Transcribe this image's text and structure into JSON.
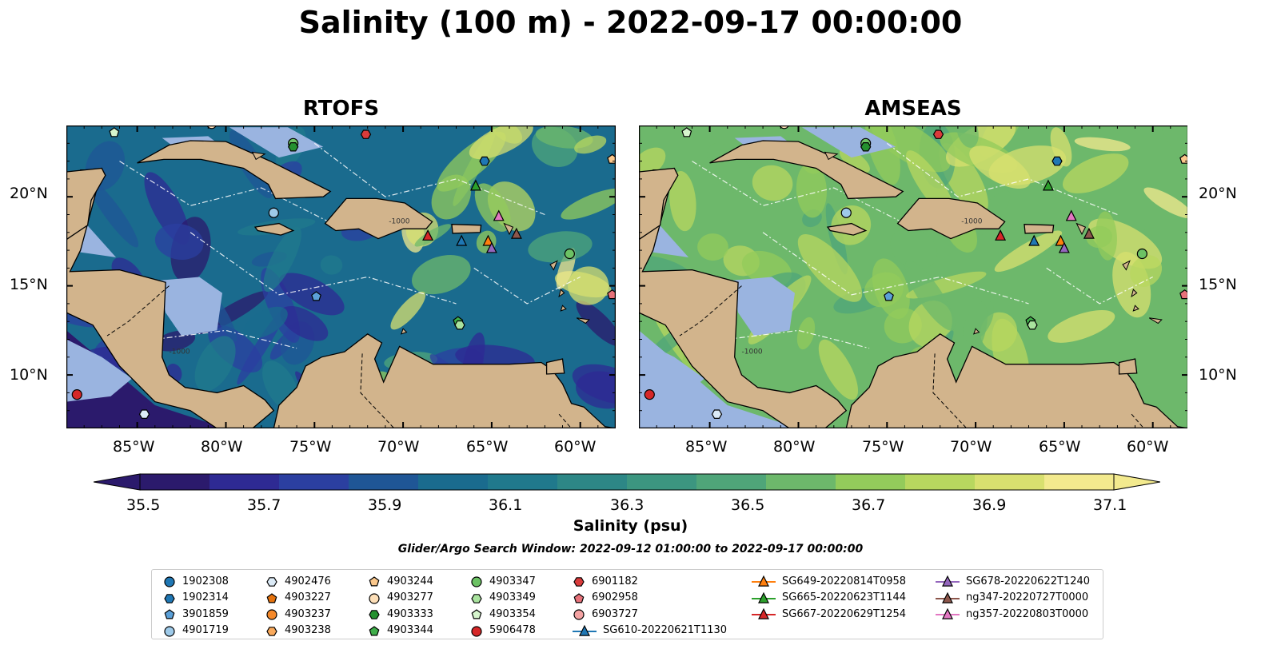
{
  "title": "Salinity (100 m) - 2022-09-17 00:00:00",
  "panels": [
    {
      "title": "RTOFS",
      "palette_bias": "low"
    },
    {
      "title": "AMSEAS",
      "palette_bias": "high"
    }
  ],
  "map": {
    "lon_range": [
      -89,
      -58
    ],
    "lat_range": [
      7,
      24
    ],
    "lon_ticks": [
      "85°W",
      "80°W",
      "75°W",
      "70°W",
      "65°W",
      "60°W"
    ],
    "lat_ticks": [
      "20°N",
      "15°N",
      "10°N"
    ],
    "land_color": "#d2b48c",
    "shelf_color": "#9ab4e0",
    "contour_labels": [
      "-1000",
      "-100"
    ]
  },
  "colorbar": {
    "ticks": [
      "35.5",
      "35.7",
      "35.9",
      "36.1",
      "36.3",
      "36.5",
      "36.7",
      "36.9",
      "37.1"
    ],
    "label": "Salinity (psu)",
    "colors": [
      "#2b1a6c",
      "#2e2a93",
      "#2b3fa0",
      "#1f5696",
      "#1a6b8e",
      "#20798c",
      "#2d8786",
      "#3c9680",
      "#4fa579",
      "#6db86b",
      "#93cb5b",
      "#b8d75f",
      "#d8e06f",
      "#f3ea8e"
    ],
    "min": 35.4,
    "max": 37.2
  },
  "search_window": "Glider/Argo Search Window: 2022-09-12 01:00:00 to 2022-09-17 00:00:00",
  "legend": {
    "entries": [
      {
        "label": "1902308",
        "marker": "circle",
        "color": "#1f77b4"
      },
      {
        "label": "1902314",
        "marker": "hexagon",
        "color": "#1f77b4"
      },
      {
        "label": "3901859",
        "marker": "pentagon",
        "color": "#5ba0d8"
      },
      {
        "label": "4901719",
        "marker": "circle",
        "color": "#9ecae9"
      },
      {
        "label": "4902476",
        "marker": "hexagon",
        "color": "#dcebf7"
      },
      {
        "label": "4903227",
        "marker": "pentagon",
        "color": "#e6730e"
      },
      {
        "label": "4903237",
        "marker": "circle",
        "color": "#f5892a"
      },
      {
        "label": "4903238",
        "marker": "hexagon",
        "color": "#f9a95b"
      },
      {
        "label": "4903244",
        "marker": "pentagon",
        "color": "#fbc88c"
      },
      {
        "label": "4903277",
        "marker": "circle",
        "color": "#fddfb8"
      },
      {
        "label": "4903333",
        "marker": "hexagon",
        "color": "#24912f"
      },
      {
        "label": "4903344",
        "marker": "pentagon",
        "color": "#3fae4a"
      },
      {
        "label": "4903347",
        "marker": "circle",
        "color": "#6cc264"
      },
      {
        "label": "4903349",
        "marker": "hexagon",
        "color": "#a9e39e"
      },
      {
        "label": "4903354",
        "marker": "pentagon",
        "color": "#d6f5cd"
      },
      {
        "label": "5906478",
        "marker": "circle",
        "color": "#d62728"
      },
      {
        "label": "6901182",
        "marker": "hexagon",
        "color": "#d93b3b"
      },
      {
        "label": "6902958",
        "marker": "pentagon",
        "color": "#e7727a"
      },
      {
        "label": "6903727",
        "marker": "circle",
        "color": "#f4a3a3"
      },
      {
        "label": "SG610-20220621T1130",
        "marker": "triangle-line",
        "color": "#1f77b4"
      },
      {
        "label": "SG649-20220814T0958",
        "marker": "triangle-line",
        "color": "#ff7f0e"
      },
      {
        "label": "SG665-20220623T1144",
        "marker": "triangle-line",
        "color": "#2ca02c"
      },
      {
        "label": "SG667-20220629T1254",
        "marker": "triangle-line",
        "color": "#d62728"
      },
      {
        "label": "SG678-20220622T1240",
        "marker": "triangle-line",
        "color": "#9467bd"
      },
      {
        "label": "ng347-20220727T0000",
        "marker": "triangle-line",
        "color": "#8c564b"
      },
      {
        "label": "ng357-20220803T0000",
        "marker": "triangle-line",
        "color": "#e377c2"
      }
    ]
  }
}
